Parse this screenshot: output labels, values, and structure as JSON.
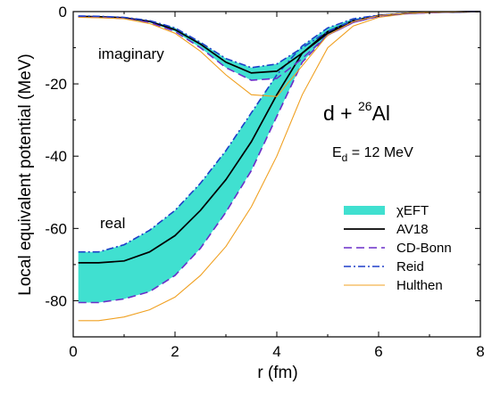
{
  "chart_data": {
    "type": "line",
    "xlabel": "r (fm)",
    "ylabel": "Local equivalent potential (MeV)",
    "xlim": [
      0,
      8
    ],
    "ylim": [
      -90,
      0
    ],
    "xticks": [
      "0",
      "2",
      "4",
      "6",
      "8"
    ],
    "yticks": [
      "0",
      "-20",
      "-40",
      "-60",
      "-80"
    ],
    "grid": false,
    "legend_position": "bottom-right",
    "annotations": {
      "imaginary": "imaginary",
      "real": "real",
      "reaction_base": "d + ",
      "reaction_mass": "26",
      "reaction_target": "Al",
      "energy_main": "E",
      "energy_sub": "d",
      "energy_value": " = 12 MeV"
    },
    "legend": [
      {
        "name": "χEFT",
        "style": "band",
        "color": "#40E0D0"
      },
      {
        "name": "AV18",
        "style": "solid",
        "color": "#000000"
      },
      {
        "name": "CD-Bonn",
        "style": "dashed",
        "color": "#6A2FC8"
      },
      {
        "name": "Reid",
        "style": "dashdot",
        "color": "#1E3FC8"
      },
      {
        "name": "Hulthen",
        "style": "solid-thin",
        "color": "#F0A020"
      }
    ],
    "bands": [
      {
        "name": "χEFT real",
        "x": [
          0.1,
          0.5,
          1.0,
          1.5,
          2.0,
          2.5,
          3.0,
          3.5,
          4.0,
          4.5,
          5.0,
          5.5,
          6.0,
          6.5,
          7.0,
          7.5,
          8.0
        ],
        "upper": [
          -66.5,
          -66.5,
          -64.5,
          -60.5,
          -55.0,
          -47.5,
          -38.5,
          -28.0,
          -17.5,
          -9.5,
          -4.5,
          -2.0,
          -1.0,
          -0.5,
          -0.2,
          -0.1,
          0.0
        ],
        "lower": [
          -80.5,
          -80.5,
          -79.5,
          -77.5,
          -73.0,
          -65.5,
          -55.5,
          -44.0,
          -29.0,
          -14.0,
          -6.5,
          -3.0,
          -1.3,
          -0.6,
          -0.3,
          -0.1,
          0.0
        ]
      },
      {
        "name": "χEFT imaginary",
        "x": [
          0.1,
          0.5,
          1.0,
          1.5,
          2.0,
          2.5,
          3.0,
          3.5,
          4.0,
          4.5,
          5.0,
          5.5,
          6.0,
          6.5,
          7.0,
          7.5,
          8.0
        ],
        "upper": [
          -1.2,
          -1.3,
          -1.6,
          -2.5,
          -4.5,
          -8.5,
          -13.0,
          -15.5,
          -14.5,
          -10.0,
          -5.5,
          -2.5,
          -1.0,
          -0.5,
          -0.2,
          -0.1,
          0.0
        ],
        "lower": [
          -1.5,
          -1.6,
          -1.9,
          -3.0,
          -5.5,
          -10.0,
          -15.5,
          -19.0,
          -18.5,
          -13.0,
          -6.5,
          -3.0,
          -1.2,
          -0.6,
          -0.3,
          -0.1,
          0.0
        ]
      }
    ],
    "series": [
      {
        "name": "AV18",
        "x": [
          0.1,
          0.5,
          1.0,
          1.5,
          2.0,
          2.5,
          3.0,
          3.5,
          4.0,
          4.5,
          5.0,
          5.5,
          6.0,
          6.5,
          7.0,
          7.5,
          8.0
        ],
        "y": [
          -69.5,
          -69.5,
          -69.0,
          -66.5,
          -62.0,
          -55.0,
          -46.5,
          -36.0,
          -23.0,
          -11.5,
          -5.5,
          -2.5,
          -1.1,
          -0.5,
          -0.2,
          -0.1,
          0.0
        ]
      },
      {
        "name": "CD-Bonn",
        "x": [
          0.1,
          0.5,
          1.0,
          1.5,
          2.0,
          2.5,
          3.0,
          3.5,
          4.0,
          4.5,
          5.0,
          5.5,
          6.0,
          6.5,
          7.0,
          7.5,
          8.0
        ],
        "y": [
          -80.5,
          -80.5,
          -79.5,
          -77.5,
          -73.0,
          -65.5,
          -55.5,
          -44.0,
          -29.0,
          -14.0,
          -6.5,
          -3.0,
          -1.3,
          -0.6,
          -0.3,
          -0.1,
          0.0
        ]
      },
      {
        "name": "Reid",
        "x": [
          0.1,
          0.5,
          1.0,
          1.5,
          2.0,
          2.5,
          3.0,
          3.5,
          4.0,
          4.5,
          5.0,
          5.5,
          6.0,
          6.5,
          7.0,
          7.5,
          8.0
        ],
        "y": [
          -66.5,
          -66.5,
          -64.5,
          -60.5,
          -55.0,
          -47.5,
          -38.5,
          -28.0,
          -17.5,
          -9.5,
          -4.5,
          -2.0,
          -1.0,
          -0.5,
          -0.2,
          -0.1,
          0.0
        ]
      },
      {
        "name": "Hulthen",
        "x": [
          0.1,
          0.5,
          1.0,
          1.5,
          2.0,
          2.5,
          3.0,
          3.5,
          4.0,
          4.5,
          5.0,
          5.5,
          6.0,
          6.5,
          7.0,
          7.5,
          8.0
        ],
        "y": [
          -85.5,
          -85.5,
          -84.5,
          -82.5,
          -79.0,
          -73.0,
          -65.0,
          -54.0,
          -40.0,
          -23.0,
          -10.0,
          -4.0,
          -1.6,
          -0.7,
          -0.3,
          -0.1,
          0.0
        ]
      },
      {
        "name": "AV18 imaginary",
        "x": [
          0.1,
          0.5,
          1.0,
          1.5,
          2.0,
          2.5,
          3.0,
          3.5,
          4.0,
          4.5,
          5.0,
          5.5,
          6.0,
          6.5,
          7.0,
          7.5,
          8.0
        ],
        "y": [
          -1.3,
          -1.4,
          -1.7,
          -2.7,
          -5.0,
          -9.0,
          -14.0,
          -17.0,
          -16.5,
          -11.5,
          -6.0,
          -2.7,
          -1.1,
          -0.5,
          -0.2,
          -0.1,
          0.0
        ]
      },
      {
        "name": "CD-Bonn imaginary",
        "x": [
          0.1,
          0.5,
          1.0,
          1.5,
          2.0,
          2.5,
          3.0,
          3.5,
          4.0,
          4.5,
          5.0,
          5.5,
          6.0,
          6.5,
          7.0,
          7.5,
          8.0
        ],
        "y": [
          -1.5,
          -1.6,
          -1.9,
          -3.0,
          -5.5,
          -10.0,
          -15.5,
          -19.0,
          -18.5,
          -13.0,
          -6.5,
          -3.0,
          -1.2,
          -0.6,
          -0.3,
          -0.1,
          0.0
        ]
      },
      {
        "name": "Reid imaginary",
        "x": [
          0.1,
          0.5,
          1.0,
          1.5,
          2.0,
          2.5,
          3.0,
          3.5,
          4.0,
          4.5,
          5.0,
          5.5,
          6.0,
          6.5,
          7.0,
          7.5,
          8.0
        ],
        "y": [
          -1.2,
          -1.3,
          -1.6,
          -2.5,
          -4.5,
          -8.5,
          -13.0,
          -15.5,
          -14.5,
          -10.0,
          -5.5,
          -2.5,
          -1.0,
          -0.5,
          -0.2,
          -0.1,
          0.0
        ]
      },
      {
        "name": "Hulthen imaginary",
        "x": [
          0.1,
          0.5,
          1.0,
          1.5,
          2.0,
          2.5,
          3.0,
          3.5,
          4.0,
          4.5,
          5.0,
          5.5,
          6.0,
          6.5,
          7.0,
          7.5,
          8.0
        ],
        "y": [
          -1.6,
          -1.7,
          -2.0,
          -3.3,
          -6.0,
          -11.0,
          -17.5,
          -23.0,
          -23.5,
          -15.0,
          -6.5,
          -2.8,
          -1.1,
          -0.5,
          -0.2,
          -0.1,
          0.0
        ]
      }
    ]
  }
}
